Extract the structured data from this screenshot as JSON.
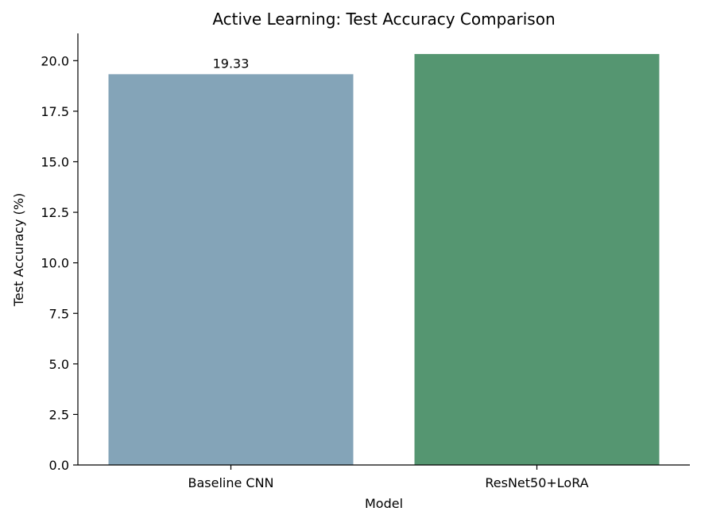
{
  "chart_data": {
    "type": "bar",
    "title": "Active Learning: Test Accuracy Comparison",
    "xlabel": "Model",
    "ylabel": "Test Accuracy (%)",
    "categories": [
      "Baseline CNN",
      "ResNet50+LoRA"
    ],
    "values": [
      19.33,
      20.33
    ],
    "data_labels": [
      "19.33",
      ""
    ],
    "colors": [
      "#84a4b8",
      "#559671"
    ],
    "ylim": [
      0,
      21.35
    ],
    "yticks": [
      0.0,
      2.5,
      5.0,
      7.5,
      10.0,
      12.5,
      15.0,
      17.5,
      20.0
    ],
    "ytick_labels": [
      "0.0",
      "2.5",
      "5.0",
      "7.5",
      "10.0",
      "12.5",
      "15.0",
      "17.5",
      "20.0"
    ],
    "grid": false,
    "spines": [
      "left",
      "bottom"
    ]
  }
}
